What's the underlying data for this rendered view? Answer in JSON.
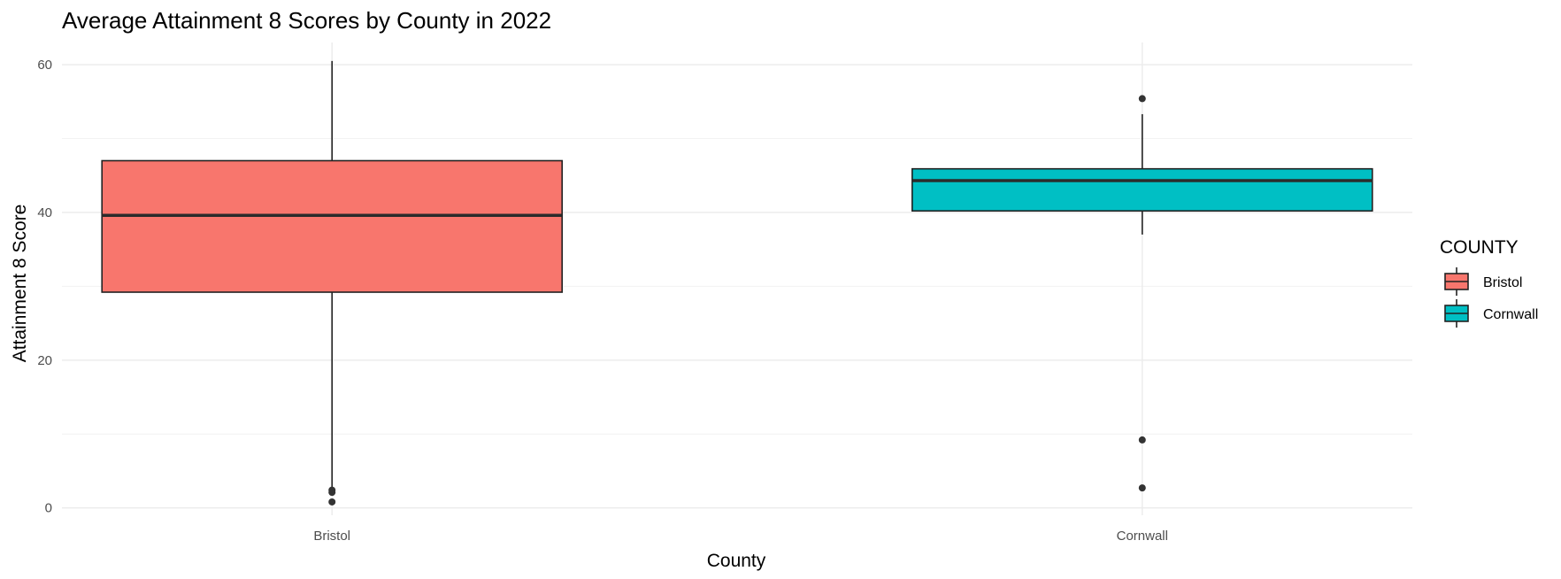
{
  "chart_data": {
    "type": "box",
    "title": "Average Attainment 8 Scores by County in 2022",
    "xlabel": "County",
    "ylabel": "Attainment 8 Score",
    "ylim": [
      -1,
      63
    ],
    "y_ticks": [
      0,
      20,
      40,
      60
    ],
    "y_minor_ticks": [
      10,
      30,
      50
    ],
    "grid": true,
    "legend": {
      "title": "COUNTY",
      "position": "right"
    },
    "categories": [
      "Bristol",
      "Cornwall"
    ],
    "series": [
      {
        "name": "Bristol",
        "color": "#F8766D",
        "whisker_low": 2.6,
        "q1": 29.2,
        "median": 39.6,
        "q3": 47.0,
        "whisker_high": 60.5,
        "outliers": [
          0.8,
          2.1,
          2.4
        ]
      },
      {
        "name": "Cornwall",
        "color": "#00BFC4",
        "whisker_low": 37.0,
        "q1": 40.2,
        "median": 44.3,
        "q3": 45.9,
        "whisker_high": 53.3,
        "outliers": [
          55.4,
          9.2,
          2.7
        ]
      }
    ]
  }
}
